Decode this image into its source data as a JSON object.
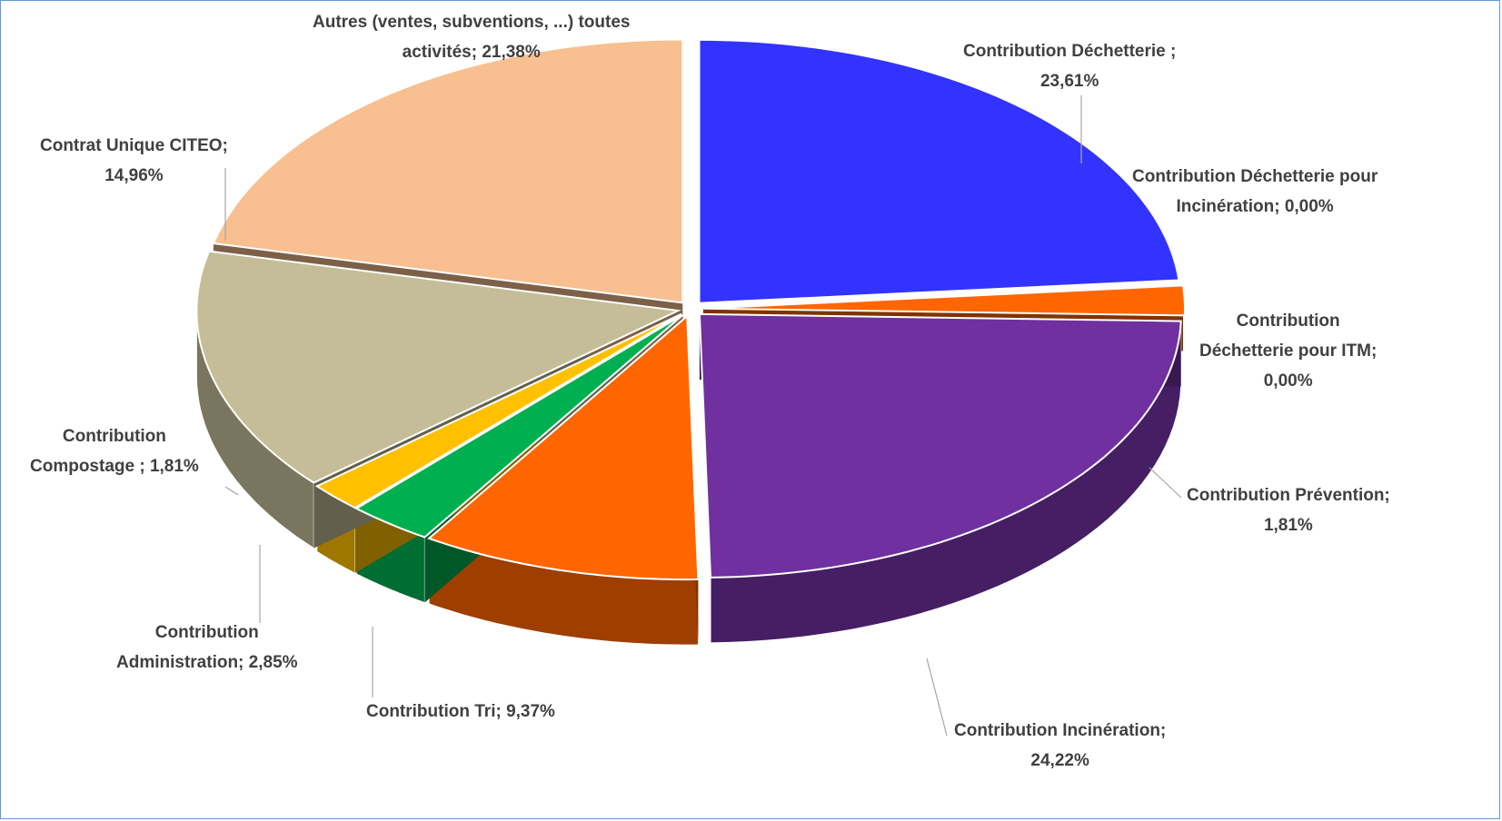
{
  "chart_data": {
    "type": "pie",
    "style": "3d-exploded",
    "title": "",
    "legend": "none",
    "slices": [
      {
        "label_lines": [
          "Contribution Déchetterie ;",
          "23,61%"
        ],
        "category": "Contribution Déchetterie",
        "value": 23.61,
        "color": "#3333ff"
      },
      {
        "label_lines": [
          "Contribution Déchetterie pour",
          "Incinération; 0,00%"
        ],
        "category": "Contribution Déchetterie pour Incinération",
        "value": 0.0,
        "color": "#1a1a80"
      },
      {
        "label_lines": [
          "Contribution",
          "Déchetterie pour ITM;",
          "0,00%"
        ],
        "category": "Contribution Déchetterie pour ITM",
        "value": 0.0,
        "color": "#4d1f00"
      },
      {
        "label_lines": [
          "Contribution Prévention;",
          "1,81%"
        ],
        "category": "Contribution Prévention",
        "value": 1.81,
        "color": "#ff6600"
      },
      {
        "label_lines": [
          "Contribution Incinération;",
          "24,22%"
        ],
        "category": "Contribution Incinération",
        "value": 24.22,
        "color": "#7030a0"
      },
      {
        "label_lines": [
          "Contribution Tri; 9,37%"
        ],
        "category": "Contribution Tri",
        "value": 9.37,
        "color": "#ff6600"
      },
      {
        "label_lines": [
          "Contribution",
          "Administration; 2,85%"
        ],
        "category": "Contribution Administration",
        "value": 2.85,
        "color": "#00b050"
      },
      {
        "label_lines": [
          "Contribution",
          "Compostage ; 1,81%"
        ],
        "category": "Contribution Compostage",
        "value": 1.81,
        "color": "#ffc000"
      },
      {
        "label_lines": [
          "Contrat Unique CITEO;",
          "14,96%"
        ],
        "category": "Contrat Unique CITEO",
        "value": 14.96,
        "color": "#c4bd97"
      },
      {
        "label_lines": [
          "Autres (ventes, subventions, ...) toutes",
          "activités; 21,38%"
        ],
        "category": "Autres (ventes, subventions, ...) toutes activités",
        "value": 21.38,
        "color": "#f8c090"
      }
    ]
  }
}
